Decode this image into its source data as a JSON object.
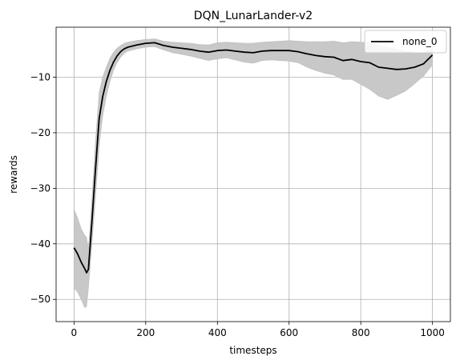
{
  "chart_data": {
    "type": "line",
    "title": "DQN_LunarLander-v2",
    "xlabel": "timesteps",
    "ylabel": "rewards",
    "xlim": [
      -50,
      1050
    ],
    "ylim": [
      -54,
      -1
    ],
    "xticks": [
      0,
      200,
      400,
      600,
      800,
      1000
    ],
    "yticks": [
      -50,
      -40,
      -30,
      -20,
      -10
    ],
    "grid": true,
    "legend_position": "top-right",
    "series": [
      {
        "name": "none_0",
        "color": "#000000",
        "band_color": "#c8c8c8",
        "x": [
          0,
          10,
          20,
          30,
          35,
          40,
          50,
          60,
          70,
          80,
          90,
          100,
          110,
          120,
          130,
          140,
          150,
          175,
          200,
          225,
          250,
          275,
          300,
          325,
          350,
          375,
          400,
          425,
          450,
          475,
          500,
          525,
          550,
          575,
          600,
          625,
          650,
          675,
          700,
          725,
          750,
          775,
          800,
          825,
          850,
          875,
          900,
          925,
          950,
          975,
          1000
        ],
        "y": [
          -40.7,
          -41.8,
          -43.3,
          -44.5,
          -45.2,
          -44.6,
          -36.0,
          -26.5,
          -17.5,
          -13.5,
          -10.8,
          -8.8,
          -7.3,
          -6.2,
          -5.4,
          -4.9,
          -4.6,
          -4.2,
          -3.9,
          -3.8,
          -4.3,
          -4.6,
          -4.8,
          -5.0,
          -5.3,
          -5.5,
          -5.2,
          -5.1,
          -5.3,
          -5.5,
          -5.6,
          -5.3,
          -5.2,
          -5.2,
          -5.2,
          -5.4,
          -5.8,
          -6.1,
          -6.3,
          -6.4,
          -7.0,
          -6.8,
          -7.2,
          -7.4,
          -8.2,
          -8.4,
          -8.6,
          -8.5,
          -8.2,
          -7.6,
          -6.0
        ],
        "lower": [
          -48.0,
          -48.7,
          -50.0,
          -51.5,
          -51.3,
          -48.0,
          -40.0,
          -31.5,
          -22.5,
          -17.0,
          -13.5,
          -10.8,
          -8.8,
          -7.4,
          -6.4,
          -5.7,
          -5.3,
          -4.9,
          -4.6,
          -4.5,
          -5.1,
          -5.6,
          -5.9,
          -6.2,
          -6.6,
          -7.0,
          -6.7,
          -6.5,
          -6.9,
          -7.3,
          -7.5,
          -7.0,
          -6.9,
          -7.0,
          -7.1,
          -7.4,
          -8.2,
          -8.8,
          -9.3,
          -9.6,
          -10.4,
          -10.4,
          -11.3,
          -12.2,
          -13.4,
          -14.0,
          -13.3,
          -12.5,
          -11.2,
          -9.8,
          -7.8
        ],
        "upper": [
          -33.8,
          -35.3,
          -37.3,
          -38.5,
          -38.8,
          -41.0,
          -32.0,
          -21.5,
          -12.8,
          -10.0,
          -8.2,
          -6.6,
          -5.5,
          -4.8,
          -4.3,
          -3.9,
          -3.7,
          -3.4,
          -3.2,
          -3.1,
          -3.5,
          -3.7,
          -3.8,
          -3.9,
          -4.1,
          -4.2,
          -3.8,
          -3.7,
          -3.8,
          -3.9,
          -3.9,
          -3.7,
          -3.6,
          -3.5,
          -3.4,
          -3.5,
          -3.6,
          -3.6,
          -3.6,
          -3.5,
          -3.8,
          -3.6,
          -3.7,
          -3.8,
          -4.3,
          -4.6,
          -4.9,
          -5.3,
          -5.6,
          -5.6,
          -4.8
        ]
      }
    ]
  }
}
